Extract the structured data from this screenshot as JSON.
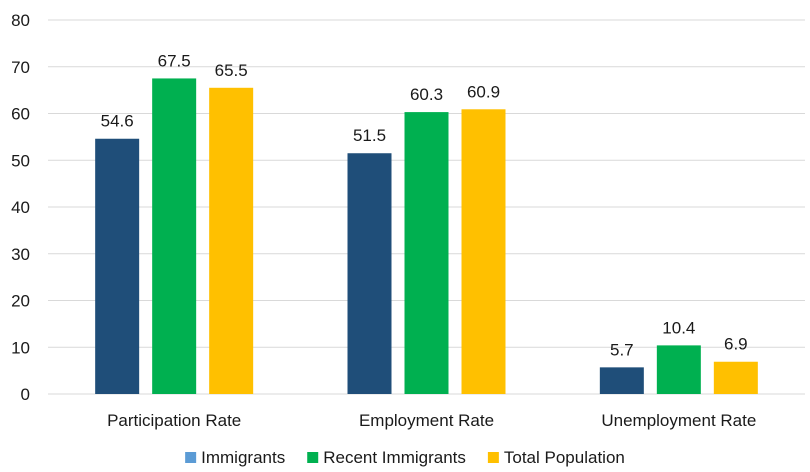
{
  "chart_data": {
    "type": "bar",
    "title": "",
    "xlabel": "",
    "ylabel": "",
    "ylim": [
      0,
      80
    ],
    "yticks": [
      0,
      10,
      20,
      30,
      40,
      50,
      60,
      70,
      80
    ],
    "grid": true,
    "legend_position": "bottom",
    "categories": [
      "Participation Rate",
      "Employment Rate",
      "Unemployment Rate"
    ],
    "series": [
      {
        "name": "Immigrants",
        "color": "#1f4e79",
        "legend_color": "#5b9bd5",
        "values": [
          54.6,
          51.5,
          5.7
        ]
      },
      {
        "name": "Recent Immigrants",
        "color": "#00b050",
        "legend_color": "#00b050",
        "values": [
          67.5,
          60.3,
          10.4
        ]
      },
      {
        "name": "Total Population",
        "color": "#ffc000",
        "legend_color": "#ffc000",
        "values": [
          65.5,
          60.9,
          6.9
        ]
      }
    ]
  }
}
